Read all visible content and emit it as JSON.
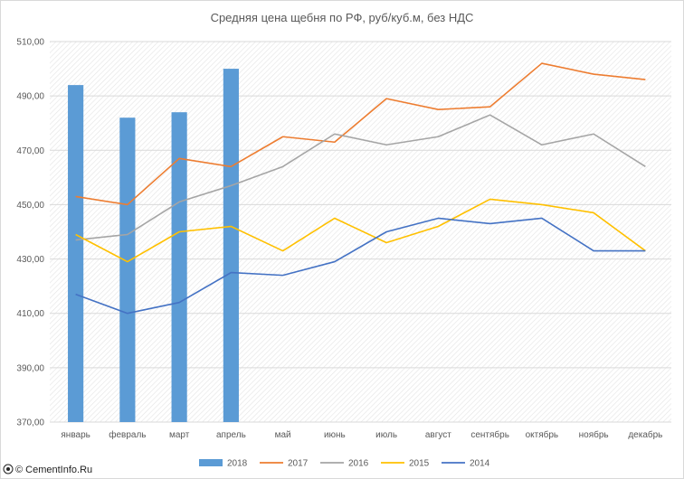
{
  "chart_data": {
    "type": "bar+line",
    "title": "Средняя цена щебня по РФ, руб/куб.м, без НДС",
    "categories": [
      "январь",
      "февраль",
      "март",
      "апрель",
      "май",
      "июнь",
      "июль",
      "август",
      "сентябрь",
      "октябрь",
      "ноябрь",
      "декабрь"
    ],
    "ylim": [
      370,
      510
    ],
    "yticks": [
      "370,00",
      "390,00",
      "410,00",
      "430,00",
      "450,00",
      "470,00",
      "490,00",
      "510,00"
    ],
    "ytick_values": [
      370,
      390,
      410,
      430,
      450,
      470,
      490,
      510
    ],
    "grid": true,
    "legend_position": "bottom",
    "series": [
      {
        "name": "2018",
        "kind": "bar",
        "color": "#5b9bd5",
        "values": [
          494,
          482,
          484,
          500,
          null,
          null,
          null,
          null,
          null,
          null,
          null,
          null
        ]
      },
      {
        "name": "2017",
        "kind": "line",
        "color": "#ed7d31",
        "values": [
          453,
          450,
          467,
          464,
          475,
          473,
          489,
          485,
          486,
          502,
          498,
          496
        ]
      },
      {
        "name": "2016",
        "kind": "line",
        "color": "#a5a5a5",
        "values": [
          437,
          439,
          451,
          457,
          464,
          476,
          472,
          475,
          483,
          472,
          476,
          464
        ]
      },
      {
        "name": "2015",
        "kind": "line",
        "color": "#ffc000",
        "values": [
          439,
          429,
          440,
          442,
          433,
          445,
          436,
          442,
          452,
          450,
          447,
          433
        ]
      },
      {
        "name": "2014",
        "kind": "line",
        "color": "#4472c4",
        "values": [
          417,
          410,
          414,
          425,
          424,
          429,
          440,
          445,
          443,
          445,
          433,
          433
        ]
      }
    ]
  },
  "watermark": "© CementInfo.Ru"
}
